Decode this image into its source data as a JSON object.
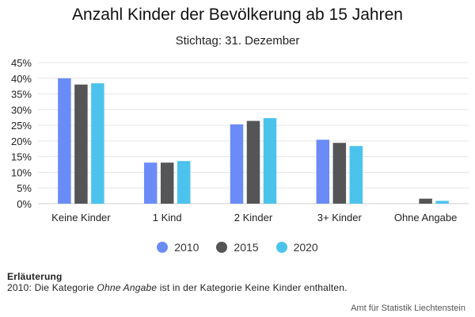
{
  "chart_data": {
    "type": "bar",
    "title": "Anzahl Kinder der Bevölkerung ab 15 Jahren",
    "subtitle": "Stichtag: 31. Dezember",
    "categories": [
      "Keine Kinder",
      "1 Kind",
      "2 Kinder",
      "3+ Kinder",
      "Ohne Angabe"
    ],
    "series": [
      {
        "name": "2010",
        "color": "#6b8cf7",
        "values": [
          40.0,
          13.1,
          25.3,
          20.4,
          0.0
        ]
      },
      {
        "name": "2015",
        "color": "#555558",
        "values": [
          38.0,
          13.1,
          26.4,
          19.4,
          1.6
        ]
      },
      {
        "name": "2020",
        "color": "#4cc3ec",
        "values": [
          38.4,
          13.6,
          27.3,
          18.4,
          0.9
        ]
      }
    ],
    "yticks": [
      "0%",
      "5%",
      "10%",
      "15%",
      "20%",
      "25%",
      "30%",
      "35%",
      "40%",
      "45%"
    ],
    "ylim": [
      0,
      45
    ],
    "grid": true,
    "legend_position": "bottom"
  },
  "note": {
    "heading": "Erläuterung",
    "text_before": "2010: Die Kategorie ",
    "text_em": "Ohne Angabe",
    "text_after": " ist in der Kategorie Keine Kinder enthalten."
  },
  "credit": "Amt für Statistik Liechtenstein"
}
